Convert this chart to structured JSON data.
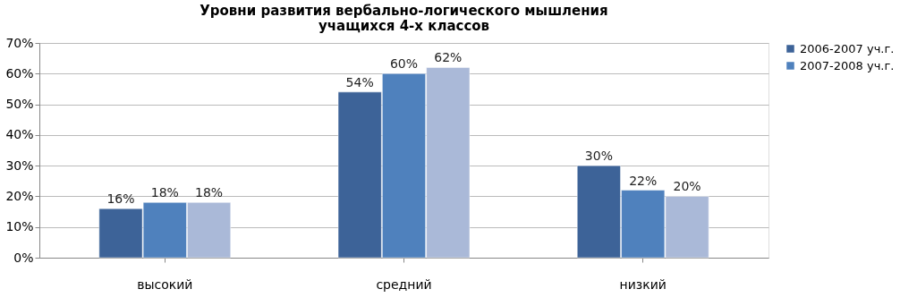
{
  "chart_data": {
    "type": "bar",
    "title": "Уровни развития вербально-логического мышления\nучащихся 4-х классов",
    "categories": [
      "высокий",
      "средний",
      "низкий"
    ],
    "series": [
      {
        "name": "2006-2007 уч.г.",
        "color": "#3d6398",
        "values": [
          16,
          54,
          30
        ],
        "value_labels": [
          "16%",
          "54%",
          "30%"
        ]
      },
      {
        "name": "2007-2008 уч.г.",
        "color": "#4f81bd",
        "values": [
          18,
          60,
          22
        ],
        "value_labels": [
          "18%",
          "60%",
          "22%"
        ]
      },
      {
        "color": "#aab9d8",
        "values": [
          18,
          62,
          20
        ],
        "value_labels": [
          "18%",
          "62%",
          "20%"
        ]
      }
    ],
    "ylim": [
      0,
      70
    ],
    "yticks": [
      {
        "value": 0,
        "label": "0%"
      },
      {
        "value": 10,
        "label": "10%"
      },
      {
        "value": 20,
        "label": "20%"
      },
      {
        "value": 30,
        "label": "30%"
      },
      {
        "value": 40,
        "label": "40%"
      },
      {
        "value": 50,
        "label": "50%"
      },
      {
        "value": 60,
        "label": "60%"
      },
      {
        "value": 70,
        "label": "70%"
      }
    ],
    "grid": "y",
    "legend": "right"
  }
}
